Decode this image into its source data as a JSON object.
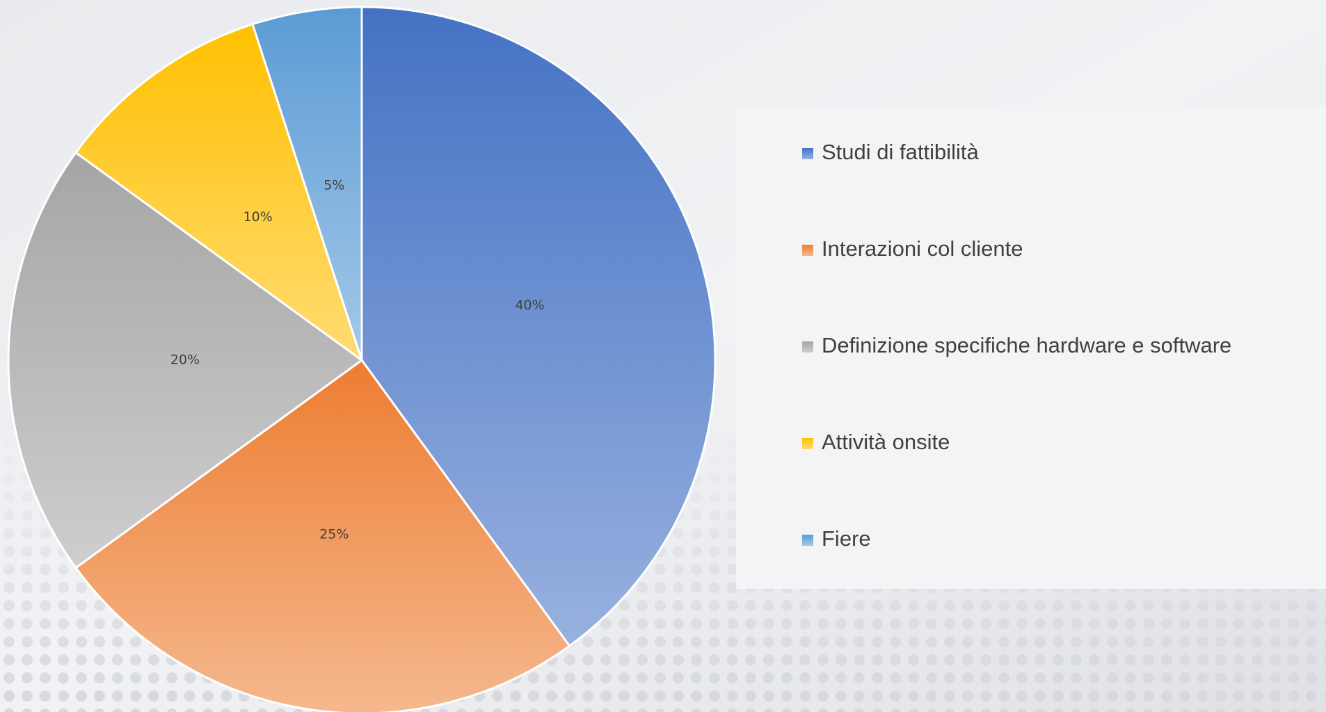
{
  "chart_data": {
    "type": "pie",
    "categories": [
      "Studi di fattibilità",
      "Interazioni col cliente",
      "Definizione specifiche hardware e software",
      "Attività onsite",
      "Fiere"
    ],
    "values": [
      40,
      25,
      20,
      10,
      5
    ],
    "value_labels": [
      "40%",
      "25%",
      "20%",
      "10%",
      "5%"
    ],
    "colors": [
      "#4472c4",
      "#ed7d31",
      "#a5a5a5",
      "#ffc000",
      "#5b9bd5"
    ],
    "legend": "right"
  }
}
